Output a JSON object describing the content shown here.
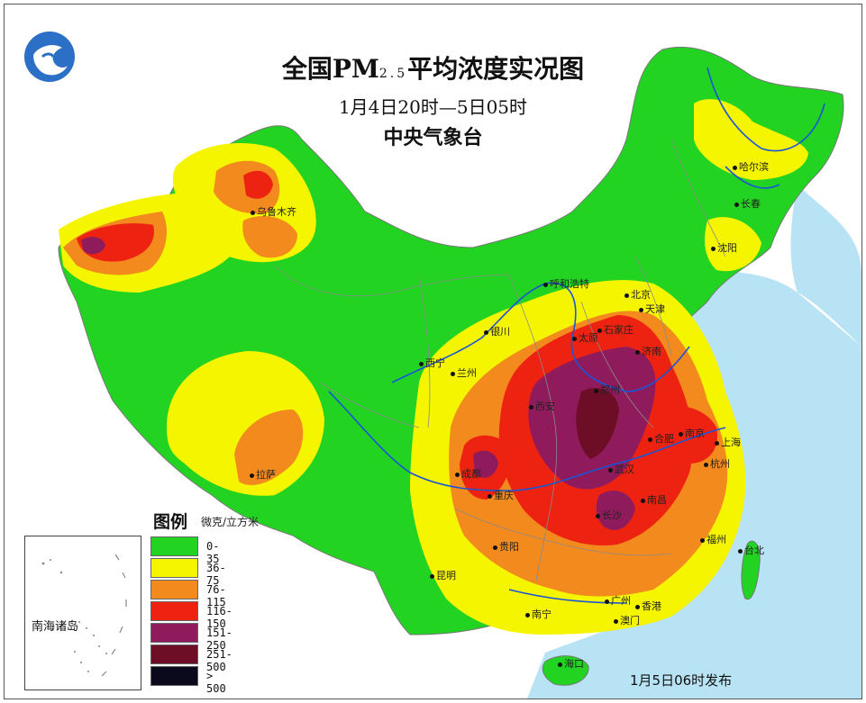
{
  "title": {
    "prefix": "全国PM",
    "subscript": "2.5",
    "suffix": "平均浓度实况图",
    "time_range": "1月4日20时—5日05时",
    "agency": "中央气象台"
  },
  "legend": {
    "title": "图例",
    "unit": "微克/立方米",
    "classes": [
      {
        "label": "0- 35",
        "color": "#22d322"
      },
      {
        "label": "36- 75",
        "color": "#f5f500"
      },
      {
        "label": "76-115",
        "color": "#f28a1e"
      },
      {
        "label": "116-150",
        "color": "#ee2211"
      },
      {
        "label": "151-250",
        "color": "#8f1b5c"
      },
      {
        "label": "251-500",
        "color": "#6e0d26"
      },
      {
        "label": "> 500",
        "color": "#0a0a1c"
      }
    ]
  },
  "inset": {
    "label": "南海诸岛"
  },
  "release": "1月5日06时发布",
  "colors": {
    "sea": "#b8e3f5",
    "river": "#1a55d6",
    "border": "#8a8a8a"
  },
  "cities": [
    {
      "name": "乌鲁木齐",
      "id": "urumqi"
    },
    {
      "name": "哈尔滨",
      "id": "harbin"
    },
    {
      "name": "长春",
      "id": "changchun"
    },
    {
      "name": "沈阳",
      "id": "shenyang"
    },
    {
      "name": "呼和浩特",
      "id": "hohhot"
    },
    {
      "name": "北京",
      "id": "beijing"
    },
    {
      "name": "天津",
      "id": "tianjin"
    },
    {
      "name": "银川",
      "id": "yinchuan"
    },
    {
      "name": "太原",
      "id": "taiyuan"
    },
    {
      "name": "石家庄",
      "id": "shijiazhuang"
    },
    {
      "name": "济南",
      "id": "jinan"
    },
    {
      "name": "西宁",
      "id": "xining"
    },
    {
      "name": "兰州",
      "id": "lanzhou"
    },
    {
      "name": "西安",
      "id": "xian"
    },
    {
      "name": "郑州",
      "id": "zhengzhou"
    },
    {
      "name": "南京",
      "id": "nanjing"
    },
    {
      "name": "合肥",
      "id": "hefei"
    },
    {
      "name": "上海",
      "id": "shanghai"
    },
    {
      "name": "杭州",
      "id": "hangzhou"
    },
    {
      "name": "成都",
      "id": "chengdu"
    },
    {
      "name": "重庆",
      "id": "chongqing"
    },
    {
      "name": "武汉",
      "id": "wuhan"
    },
    {
      "name": "南昌",
      "id": "nanchang"
    },
    {
      "name": "长沙",
      "id": "changsha"
    },
    {
      "name": "拉萨",
      "id": "lhasa"
    },
    {
      "name": "贵阳",
      "id": "guiyang"
    },
    {
      "name": "福州",
      "id": "fuzhou"
    },
    {
      "name": "台北",
      "id": "taipei"
    },
    {
      "name": "昆明",
      "id": "kunming"
    },
    {
      "name": "南宁",
      "id": "nanning"
    },
    {
      "name": "广州",
      "id": "guangzhou"
    },
    {
      "name": "香港",
      "id": "hongkong"
    },
    {
      "name": "澳门",
      "id": "macau"
    },
    {
      "name": "海口",
      "id": "haikou"
    }
  ]
}
